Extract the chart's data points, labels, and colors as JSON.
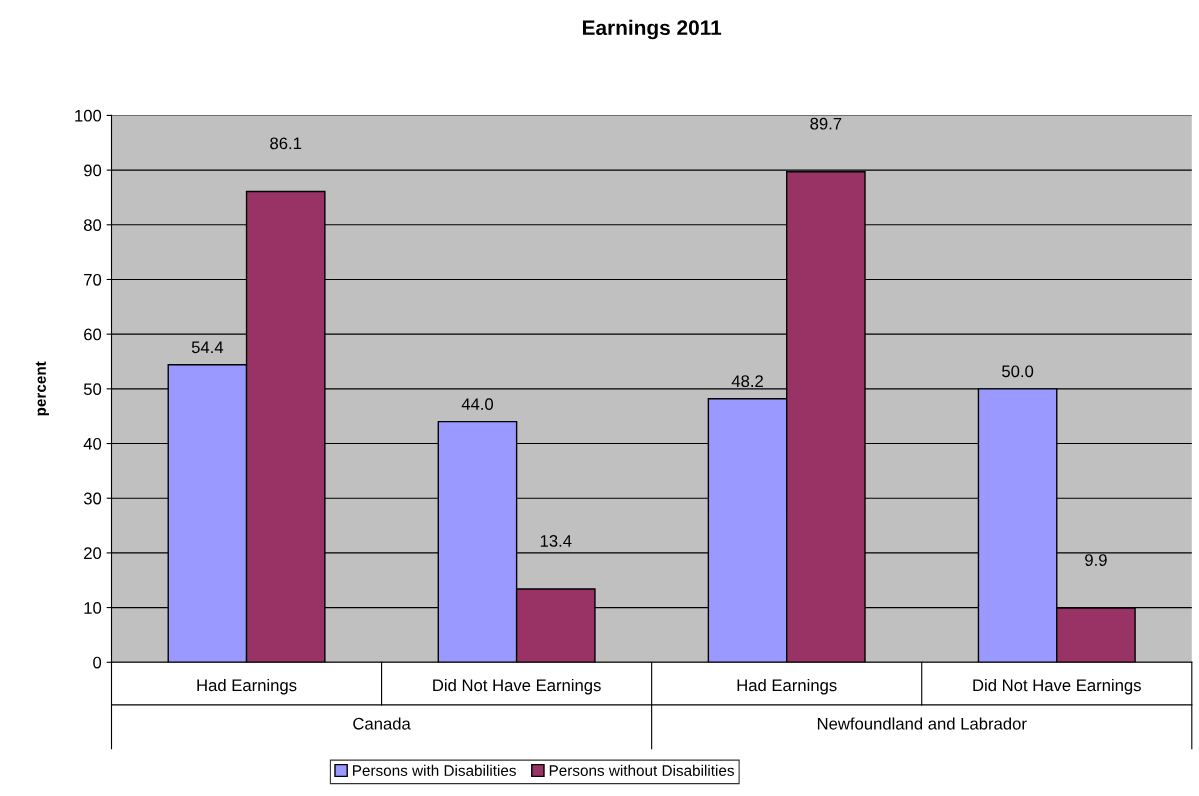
{
  "chart_data": {
    "type": "bar",
    "title": "Earnings 2011",
    "ylabel": "percent",
    "categories": [
      "Had Earnings",
      "Did Not Have Earnings",
      "Had Earnings",
      "Did Not Have Earnings"
    ],
    "annotations": [
      "Canada",
      "Newfoundland and Labrador"
    ],
    "series": [
      {
        "name": "Persons with Disabilities",
        "color": "#9999ff",
        "values": [
          54.4,
          44.0,
          48.2,
          50.0
        ],
        "value_labels": [
          "54.4",
          "44.0",
          "48.2",
          "50.0"
        ]
      },
      {
        "name": "Persons without Disabilities",
        "color": "#993366",
        "values": [
          86.1,
          13.4,
          89.7,
          9.9
        ],
        "value_labels": [
          "86.1",
          "13.4",
          "89.7",
          "9.9"
        ]
      }
    ],
    "ylim": [
      0,
      100
    ],
    "yticks": [
      0,
      10,
      20,
      30,
      40,
      50,
      60,
      70,
      80,
      90,
      100
    ],
    "grid": "y",
    "legend": "bottom"
  }
}
